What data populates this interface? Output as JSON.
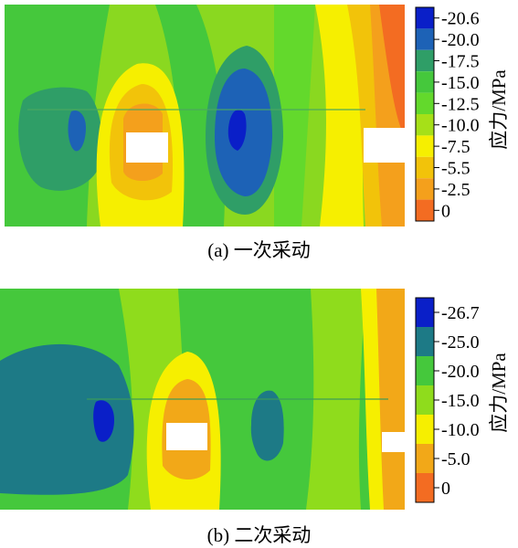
{
  "panels": [
    {
      "caption": "(a)  一次采动",
      "colorbar_label": "应力/MPa",
      "colorbar_ticks": [
        "-20.6",
        "-20.0",
        "-17.5",
        "-15.0",
        "-12.5",
        "-10.0",
        "-7.5",
        "-5.5",
        "-2.5",
        "0"
      ],
      "colorbar_colors": [
        "#0a1fc8",
        "#1d62b6",
        "#2f9e67",
        "#45c83c",
        "#63d92c",
        "#a6e018",
        "#f6ef00",
        "#f2c30a",
        "#f4a01c",
        "#f36c22"
      ]
    },
    {
      "caption": "(b)  二次采动",
      "colorbar_label": "应力/MPa",
      "colorbar_ticks": [
        "-26.7",
        "-25.0",
        "-20.0",
        "-15.0",
        "-10.0",
        "-5.0",
        "0"
      ],
      "colorbar_colors": [
        "#0a1fc8",
        "#1d7a86",
        "#45c83c",
        "#8fdc1c",
        "#f6ef00",
        "#f2a818",
        "#f36c22"
      ]
    }
  ],
  "colors": {
    "deep_blue": "#0a1fc8",
    "blue": "#1d62b6",
    "teal": "#2f9070",
    "green": "#45c83c",
    "light_green": "#8ad820",
    "yellow": "#f6ef00",
    "orange": "#f2a818",
    "red_orange": "#f36c22",
    "gob": "#ffffff"
  }
}
